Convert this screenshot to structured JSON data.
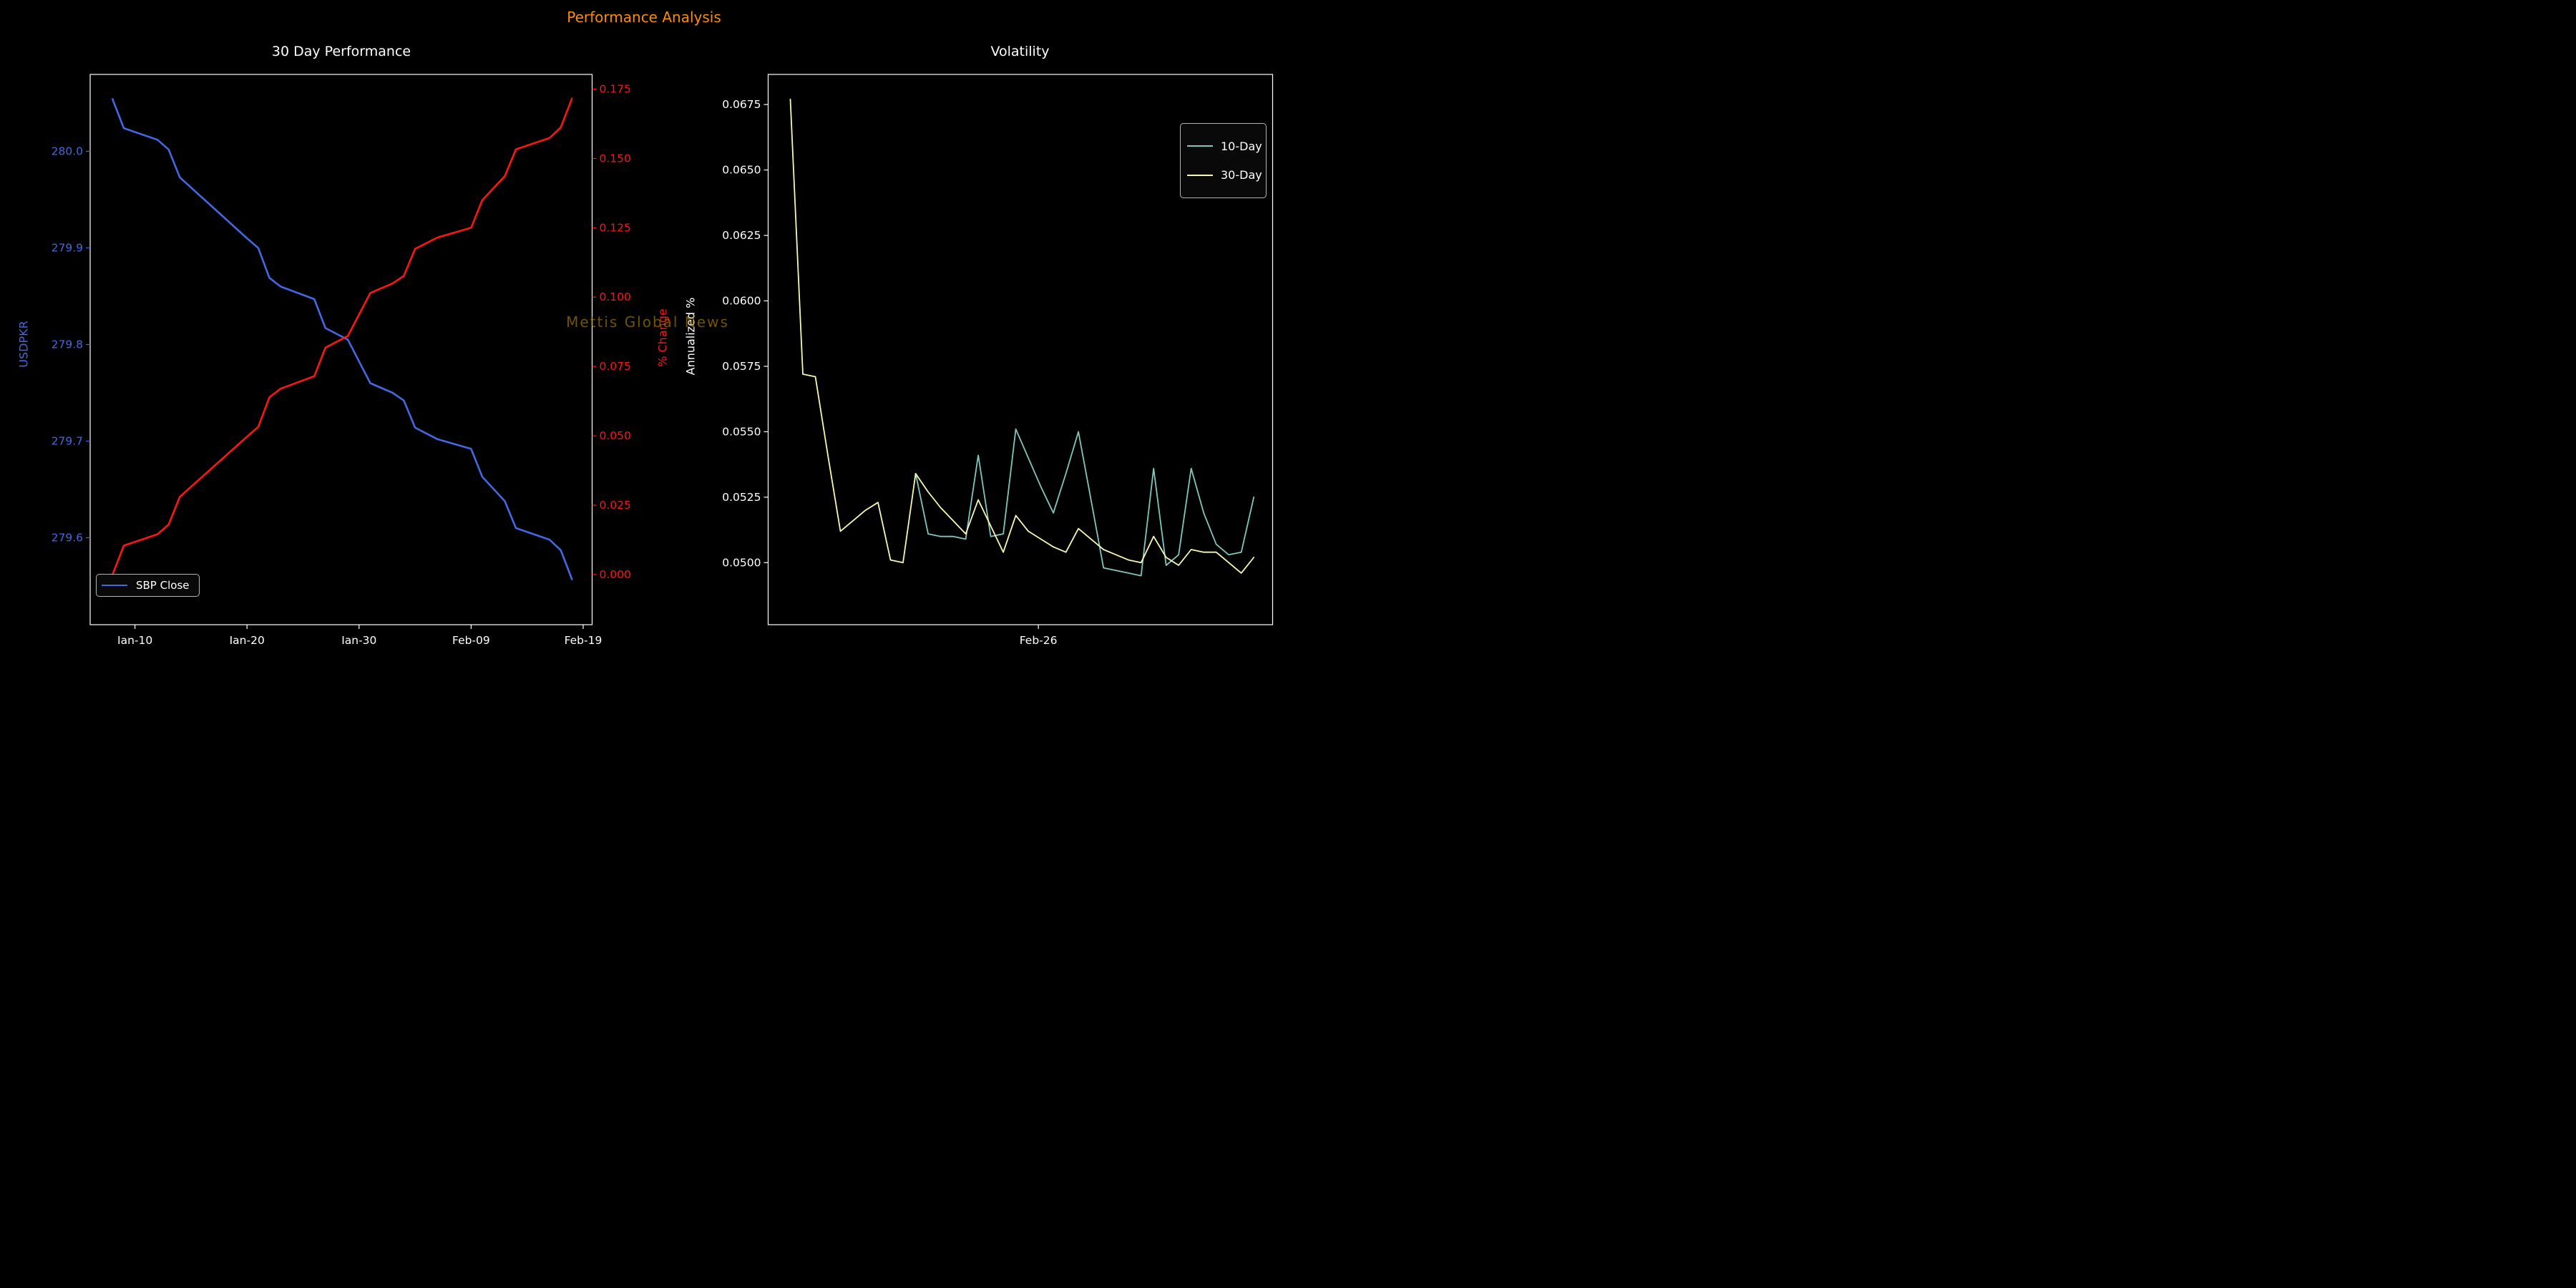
{
  "figure_title": "Performance Analysis",
  "watermark": "Mettis Global News",
  "colors": {
    "background": "#000000",
    "title_orange": "#ff8c00",
    "blue": "#4169e1",
    "red": "#ff1414",
    "teal": "#7fc7bd",
    "pale_yellow": "#f8f8b0",
    "text": "#ffffff",
    "legend_border": "#b3b3b3",
    "watermark": "#b8860b"
  },
  "chart_data": [
    {
      "type": "line",
      "title": "30 Day Performance",
      "x_axis": {
        "tick_labels": [
          "Jan-10",
          "Jan-20",
          "Jan-30",
          "Feb-09",
          "Feb-19"
        ],
        "tick_pos": [
          2,
          12,
          22,
          32,
          42
        ],
        "xlim": [
          -2.0,
          42.8
        ]
      },
      "y_left": {
        "label": "USDPKR",
        "color": "#4169e1",
        "tick_labels": [
          "280.0",
          "279.9",
          "279.8",
          "279.7",
          "279.6"
        ],
        "tick_values": [
          280.0,
          279.9,
          279.8,
          279.7,
          279.6
        ],
        "ylim": [
          279.51,
          280.0796
        ]
      },
      "y_right": {
        "label": "% Change",
        "color": "#ff1414",
        "tick_labels": [
          "0.175",
          "0.150",
          "0.125",
          "0.100",
          "0.075",
          "0.050",
          "0.025",
          "0.000"
        ],
        "tick_values": [
          0.175,
          0.15,
          0.125,
          0.1,
          0.075,
          0.05,
          0.025,
          0.0
        ],
        "ylim": [
          -0.0181,
          0.1803
        ]
      },
      "legend": {
        "position": "lower left",
        "entries": [
          "SBP Close"
        ]
      },
      "series": [
        {
          "name": "SBP Close",
          "axis": "left",
          "color": "#4169e1",
          "dates": [
            "Jan-08",
            "Jan-09",
            "Jan-12",
            "Jan-13",
            "Jan-14",
            "Jan-20",
            "Jan-21",
            "Jan-22",
            "Jan-23",
            "Jan-26",
            "Jan-27",
            "Jan-29",
            "Jan-31",
            "Feb-02",
            "Feb-03",
            "Feb-04",
            "Feb-06",
            "Feb-09",
            "Feb-10",
            "Feb-12",
            "Feb-13",
            "Feb-16",
            "Feb-17",
            "Feb-18"
          ],
          "x": [
            0,
            1,
            4,
            5,
            6,
            12,
            13,
            14,
            15,
            18,
            19,
            21,
            23,
            25,
            26,
            27,
            29,
            32,
            33,
            35,
            36,
            39,
            40,
            41
          ],
          "values": [
            280.054,
            280.024,
            280.012,
            280.002,
            279.973,
            279.91,
            279.9,
            279.869,
            279.86,
            279.847,
            279.817,
            279.805,
            279.76,
            279.75,
            279.742,
            279.714,
            279.702,
            279.692,
            279.663,
            279.638,
            279.61,
            279.598,
            279.587,
            279.557
          ]
        },
        {
          "name": "% Change",
          "axis": "right",
          "color": "#ff1414",
          "dates": [
            "Jan-08",
            "Jan-09",
            "Jan-12",
            "Jan-13",
            "Jan-14",
            "Jan-20",
            "Jan-21",
            "Jan-22",
            "Jan-23",
            "Jan-26",
            "Jan-27",
            "Jan-29",
            "Jan-31",
            "Feb-02",
            "Feb-03",
            "Feb-04",
            "Feb-06",
            "Feb-09",
            "Feb-10",
            "Feb-12",
            "Feb-13",
            "Feb-16",
            "Feb-17",
            "Feb-18"
          ],
          "x": [
            0,
            1,
            4,
            5,
            6,
            12,
            13,
            14,
            15,
            18,
            19,
            21,
            23,
            25,
            26,
            27,
            29,
            32,
            33,
            35,
            36,
            39,
            40,
            41
          ],
          "values": [
            0.0,
            0.0104,
            0.0145,
            0.018,
            0.028,
            0.0497,
            0.0532,
            0.0639,
            0.067,
            0.0715,
            0.0818,
            0.086,
            0.1015,
            0.105,
            0.1077,
            0.1174,
            0.1215,
            0.125,
            0.135,
            0.1436,
            0.1533,
            0.1574,
            0.1612,
            0.1716
          ]
        }
      ]
    },
    {
      "type": "line",
      "title": "Volatility",
      "x_axis": {
        "tick_labels": [
          "Feb-26"
        ],
        "tick_pos": [
          19.8
        ],
        "xlim": [
          -1.77,
          38.5
        ]
      },
      "y_left": {
        "label": "Annualized %",
        "color": "#ffffff",
        "tick_labels": [
          "0.0675",
          "0.0650",
          "0.0625",
          "0.0600",
          "0.0575",
          "0.0550",
          "0.0525",
          "0.0500"
        ],
        "tick_values": [
          0.0675,
          0.065,
          0.0625,
          0.06,
          0.0575,
          0.055,
          0.0525,
          0.05
        ],
        "ylim": [
          0.04763,
          0.06865
        ]
      },
      "legend": {
        "position": "upper right",
        "entries": [
          "10-Day",
          "30-Day"
        ]
      },
      "series": [
        {
          "name": "10-Day",
          "axis": "left",
          "color": "#7fc7bd",
          "x": [
            10,
            11,
            12,
            13,
            14,
            15,
            16,
            17,
            18,
            19,
            20,
            21,
            22,
            23,
            24,
            25,
            26,
            27,
            28,
            29,
            30,
            31,
            32,
            33,
            34,
            35,
            36,
            37
          ],
          "values": [
            0.0534,
            0.0511,
            0.051,
            0.051,
            0.0509,
            0.0541,
            0.051,
            0.0511,
            0.0551,
            0.054,
            0.0529,
            0.0519,
            0.0534,
            0.055,
            0.0524,
            0.0498,
            0.0497,
            0.0496,
            0.0495,
            0.0536,
            0.0499,
            0.0503,
            0.0536,
            0.0519,
            0.0507,
            0.0503,
            0.0504,
            0.0525
          ]
        },
        {
          "name": "30-Day",
          "axis": "left",
          "color": "#f8f8b0",
          "x": [
            0,
            1,
            2,
            3,
            4,
            5,
            6,
            7,
            8,
            9,
            10,
            11,
            12,
            13,
            14,
            15,
            16,
            17,
            18,
            19,
            20,
            21,
            22,
            23,
            24,
            25,
            26,
            27,
            28,
            29,
            30,
            31,
            32,
            33,
            34,
            35,
            36,
            37
          ],
          "values": [
            0.0677,
            0.0572,
            0.0571,
            0.0541,
            0.0512,
            0.0516,
            0.052,
            0.0523,
            0.0501,
            0.05,
            0.0534,
            0.0527,
            0.0521,
            0.0516,
            0.0511,
            0.0524,
            0.0514,
            0.0504,
            0.0518,
            0.0512,
            0.0509,
            0.0506,
            0.0504,
            0.0513,
            0.0509,
            0.0505,
            0.0503,
            0.0501,
            0.05,
            0.051,
            0.0502,
            0.0499,
            0.0505,
            0.0504,
            0.0504,
            0.05,
            0.0496,
            0.0502
          ]
        }
      ]
    }
  ]
}
